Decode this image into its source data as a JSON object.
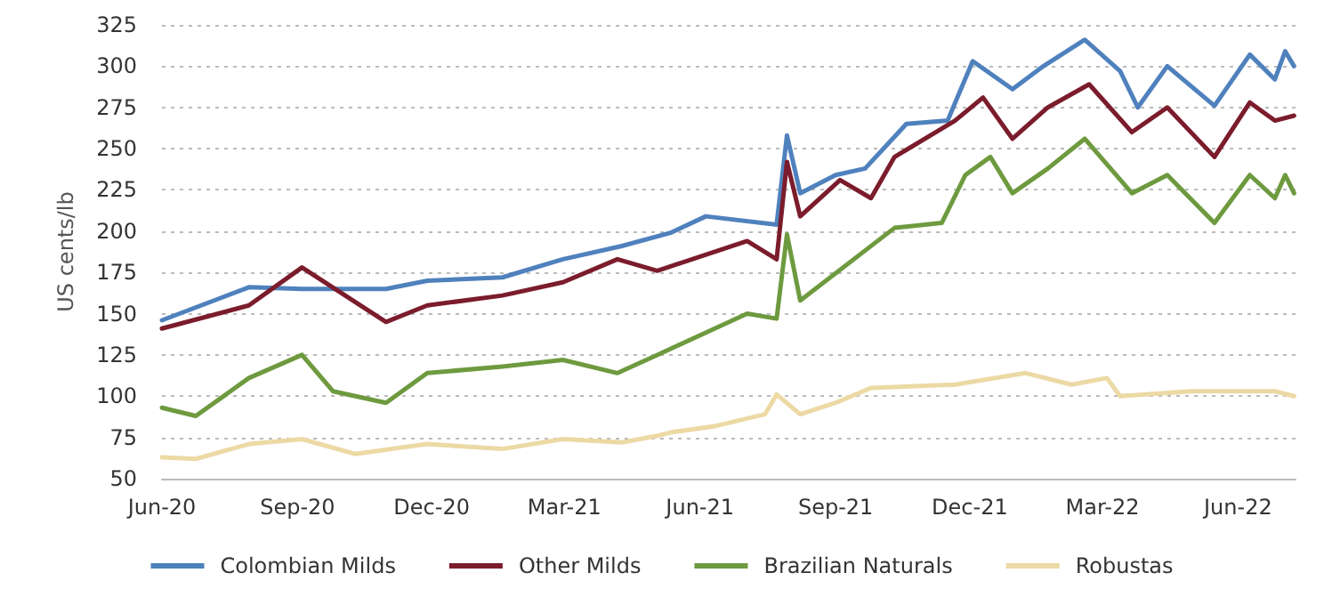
{
  "chart_data": {
    "type": "line",
    "ylabel": "US cents/lb",
    "xlim": [
      "2020-06-01",
      "2022-07-10"
    ],
    "xticks": [
      {
        "value": "2020-06-01",
        "label": "Jun-20"
      },
      {
        "value": "2020-09-01",
        "label": "Sep-20"
      },
      {
        "value": "2020-12-01",
        "label": "Dec-20"
      },
      {
        "value": "2021-03-01",
        "label": "Mar-21"
      },
      {
        "value": "2021-06-01",
        "label": "Jun-21"
      },
      {
        "value": "2021-09-01",
        "label": "Sep-21"
      },
      {
        "value": "2021-12-01",
        "label": "Dec-21"
      },
      {
        "value": "2022-03-01",
        "label": "Mar-22"
      },
      {
        "value": "2022-06-01",
        "label": "Jun-22"
      }
    ],
    "ylim": [
      50,
      325
    ],
    "yticks": [
      50,
      75,
      100,
      125,
      150,
      175,
      200,
      225,
      250,
      275,
      300,
      325
    ],
    "grid": "y",
    "legend": "bottom",
    "marker": "none",
    "line_style": "solid",
    "series": [
      {
        "name": "Colombian Milds",
        "color": "#4f81bd",
        "x": [
          "2020-06-01",
          "2020-07-30",
          "2020-09-04",
          "2020-10-31",
          "2020-11-28",
          "2021-01-18",
          "2021-02-28",
          "2021-04-09",
          "2021-05-12",
          "2021-06-05",
          "2021-07-23",
          "2021-07-30",
          "2021-08-08",
          "2021-09-01",
          "2021-09-21",
          "2021-10-19",
          "2021-11-16",
          "2021-12-03",
          "2021-12-30",
          "2022-01-20",
          "2022-02-17",
          "2022-03-13",
          "2022-03-25",
          "2022-04-14",
          "2022-05-16",
          "2022-06-09",
          "2022-06-26",
          "2022-07-03",
          "2022-07-09"
        ],
        "values": [
          146,
          166,
          165,
          165,
          170,
          172,
          183,
          191,
          199,
          209,
          204,
          258,
          223,
          234,
          238,
          265,
          267,
          303,
          286,
          300,
          316,
          297,
          275,
          300,
          276,
          307,
          292,
          309,
          300
        ]
      },
      {
        "name": "Other Milds",
        "color": "#7b1c2c",
        "x": [
          "2020-06-01",
          "2020-07-30",
          "2020-09-04",
          "2020-10-31",
          "2020-11-28",
          "2021-01-18",
          "2021-02-28",
          "2021-04-06",
          "2021-05-03",
          "2021-07-03",
          "2021-07-23",
          "2021-07-30",
          "2021-08-08",
          "2021-09-04",
          "2021-09-25",
          "2021-10-11",
          "2021-11-21",
          "2021-12-10",
          "2021-12-30",
          "2022-01-23",
          "2022-02-20",
          "2022-03-21",
          "2022-04-14",
          "2022-05-16",
          "2022-06-09",
          "2022-06-26",
          "2022-07-09"
        ],
        "values": [
          141,
          155,
          178,
          145,
          155,
          161,
          169,
          183,
          176,
          194,
          183,
          242,
          209,
          231,
          220,
          245,
          267,
          281,
          256,
          275,
          289,
          260,
          275,
          245,
          278,
          267,
          270
        ]
      },
      {
        "name": "Brazilian Naturals",
        "color": "#6e9a3f",
        "x": [
          "2020-06-01",
          "2020-06-24",
          "2020-07-30",
          "2020-09-04",
          "2020-09-25",
          "2020-10-31",
          "2020-11-28",
          "2021-01-18",
          "2021-02-28",
          "2021-04-06",
          "2021-05-03",
          "2021-07-03",
          "2021-07-23",
          "2021-07-30",
          "2021-08-08",
          "2021-10-11",
          "2021-11-12",
          "2021-11-28",
          "2021-12-15",
          "2021-12-30",
          "2022-01-23",
          "2022-02-17",
          "2022-03-21",
          "2022-04-14",
          "2022-05-16",
          "2022-06-09",
          "2022-06-26",
          "2022-07-03",
          "2022-07-09"
        ],
        "values": [
          93,
          88,
          111,
          125,
          103,
          96,
          114,
          118,
          122,
          114,
          125,
          150,
          147,
          198,
          158,
          202,
          205,
          234,
          245,
          223,
          238,
          256,
          223,
          234,
          205,
          234,
          220,
          234,
          223
        ]
      },
      {
        "name": "Robustas",
        "color": "#ecd9a4",
        "x": [
          "2020-06-01",
          "2020-06-24",
          "2020-07-30",
          "2020-09-04",
          "2020-10-10",
          "2020-11-28",
          "2021-01-18",
          "2021-02-28",
          "2021-04-09",
          "2021-05-03",
          "2021-05-12",
          "2021-06-12",
          "2021-07-15",
          "2021-07-23",
          "2021-08-08",
          "2021-09-01",
          "2021-09-25",
          "2021-11-21",
          "2022-01-08",
          "2022-02-08",
          "2022-03-04",
          "2022-03-13",
          "2022-04-30",
          "2022-06-26",
          "2022-07-09"
        ],
        "values": [
          63,
          62,
          71,
          74,
          65,
          71,
          68,
          74,
          72,
          76,
          78,
          82,
          89,
          101,
          89,
          96,
          105,
          107,
          114,
          107,
          111,
          100,
          103,
          103,
          100
        ]
      }
    ]
  }
}
